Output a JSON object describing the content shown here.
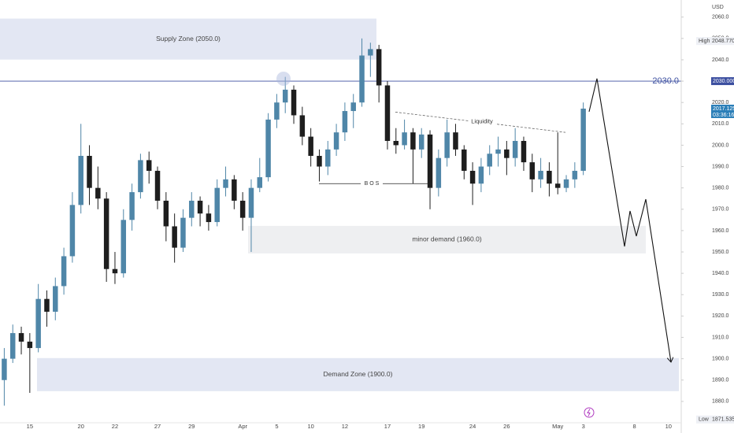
{
  "chart_data": {
    "type": "candlestick",
    "currency": "USD",
    "categories": [
      null,
      null,
      null,
      "15",
      null,
      null,
      null,
      null,
      null,
      "20",
      null,
      null,
      null,
      "22",
      null,
      null,
      null,
      null,
      "27",
      null,
      null,
      null,
      "29",
      null,
      null,
      null,
      null,
      null,
      "Apr",
      null,
      null,
      null,
      "5",
      null,
      null,
      null,
      "10",
      null,
      null,
      null,
      "12",
      null,
      null,
      null,
      null,
      "17",
      null,
      null,
      null,
      "19",
      null,
      null,
      null,
      null,
      null,
      "24",
      null,
      null,
      null,
      "26",
      null,
      null,
      null,
      null,
      null,
      "May",
      null,
      null,
      "3",
      null,
      null,
      null,
      null,
      null,
      "8",
      null,
      null,
      null,
      "10",
      null
    ],
    "open": [
      1890,
      1900,
      1912,
      1908,
      1905,
      1928,
      1922,
      1934,
      1948,
      1972,
      1995,
      1980,
      1975,
      1942,
      1940,
      1965,
      1978,
      1993,
      1988,
      1974,
      1962,
      1952,
      1966,
      1974,
      1968,
      1964,
      1980,
      1984,
      1974,
      1966,
      1980,
      1985,
      2012,
      2020,
      2026,
      2014,
      2004,
      1995,
      1990,
      1998,
      2006,
      2016,
      2020,
      2042,
      2045,
      2028,
      2002,
      2000,
      2006,
      1998,
      2005,
      1980,
      1994,
      2006,
      1998,
      1988,
      1982,
      1990,
      1996,
      1998,
      1994,
      2002,
      1992,
      1984,
      1988,
      1982,
      1980,
      1984,
      1988,
      null,
      null,
      null,
      null,
      null,
      null,
      null,
      null,
      null,
      null,
      null
    ],
    "high": [
      1905,
      1916,
      1915,
      1912,
      1935,
      1932,
      1938,
      1952,
      1978,
      2010,
      2000,
      1990,
      1978,
      1950,
      1970,
      1982,
      1996,
      1997,
      1990,
      1978,
      1968,
      1970,
      1978,
      1976,
      1972,
      1984,
      1990,
      1986,
      1978,
      1984,
      1994,
      2015,
      2024,
      2032,
      2028,
      2018,
      2008,
      1998,
      2002,
      2010,
      2020,
      2024,
      2050,
      2048,
      2047,
      2030,
      2008,
      2012,
      2008,
      2008,
      2007,
      1998,
      2012,
      2010,
      2000,
      1992,
      1994,
      2000,
      2004,
      2002,
      2008,
      2004,
      1996,
      1994,
      1992,
      2006,
      1986,
      1992,
      2020,
      null,
      null,
      null,
      null,
      null,
      null,
      null,
      null,
      null,
      null,
      null
    ],
    "low": [
      1878,
      1898,
      1902,
      1884,
      1903,
      1915,
      1918,
      1930,
      1945,
      1968,
      1972,
      1970,
      1936,
      1935,
      1938,
      1960,
      1975,
      1982,
      1970,
      1955,
      1945,
      1950,
      1962,
      1962,
      1960,
      1962,
      1976,
      1970,
      1960,
      1950,
      1978,
      1983,
      2008,
      2015,
      2010,
      2000,
      1990,
      1983,
      1986,
      1995,
      2002,
      2008,
      2018,
      2032,
      2020,
      1998,
      1996,
      1998,
      1982,
      1994,
      1970,
      1976,
      1990,
      1995,
      1984,
      1972,
      1978,
      1986,
      1990,
      1986,
      1990,
      1988,
      1978,
      1980,
      1976,
      1977,
      1978,
      1980,
      1986,
      null,
      null,
      null,
      null,
      null,
      null,
      null,
      null,
      null,
      null,
      null
    ],
    "close": [
      1900,
      1912,
      1908,
      1905,
      1928,
      1922,
      1934,
      1948,
      1972,
      1995,
      1980,
      1975,
      1942,
      1940,
      1965,
      1978,
      1993,
      1988,
      1974,
      1962,
      1952,
      1966,
      1974,
      1968,
      1964,
      1980,
      1984,
      1974,
      1966,
      1980,
      1985,
      2012,
      2020,
      2026,
      2014,
      2004,
      1995,
      1990,
      1998,
      2006,
      2016,
      2020,
      2042,
      2045,
      2028,
      2002,
      2000,
      2006,
      1998,
      2005,
      1980,
      1994,
      2006,
      1998,
      1988,
      1982,
      1990,
      1996,
      1998,
      1994,
      2002,
      1992,
      1984,
      1988,
      1982,
      1980,
      1984,
      1988,
      2017.125,
      null,
      null,
      null,
      null,
      null,
      null,
      null,
      null,
      null,
      null,
      null
    ],
    "up_color": "#4f86a8",
    "down_color": "#1e1e1e",
    "ylim": [
      1870,
      2068
    ],
    "yticks": [
      {
        "value": 1880,
        "label": "1880.0"
      },
      {
        "value": 1890,
        "label": "1890.0"
      },
      {
        "value": 1900,
        "label": "1900.0"
      },
      {
        "value": 1910,
        "label": "1910.0"
      },
      {
        "value": 1920,
        "label": "1920.0"
      },
      {
        "value": 1930,
        "label": "1930.0"
      },
      {
        "value": 1940,
        "label": "1940.0"
      },
      {
        "value": 1950,
        "label": "1950.0"
      },
      {
        "value": 1960,
        "label": "1960.0"
      },
      {
        "value": 1970,
        "label": "1970.0"
      },
      {
        "value": 1980,
        "label": "1980.0"
      },
      {
        "value": 1990,
        "label": "1990.0"
      },
      {
        "value": 2000,
        "label": "2000.0"
      },
      {
        "value": 2010,
        "label": "2010.0"
      },
      {
        "value": 2020,
        "label": "2020.0"
      },
      {
        "value": 2030,
        "label": "2030.0"
      },
      {
        "value": 2040,
        "label": "2040.0"
      },
      {
        "value": 2050,
        "label": "2050.0"
      },
      {
        "value": 2060,
        "label": "2060.0"
      }
    ],
    "zones": [
      {
        "label": "Supply Zone (2050.0)",
        "range": [
          2040.1,
          2059.3
        ],
        "color": "#e3e7f3"
      },
      {
        "label": "minor demand (1960.0)",
        "range": [
          1949.3,
          1962.2
        ],
        "color": "#eeeff1"
      },
      {
        "label": "Demand Zone (1900.0)",
        "range": [
          1884.8,
          1900.3
        ],
        "color": "#e3e7f3"
      }
    ],
    "level": {
      "value": 2030,
      "label": "2030.0",
      "axis_label": "2030.000",
      "color": "#3c4fa0"
    },
    "high_marker": {
      "label": "High",
      "value": 2048.77,
      "value_label": "2048.770"
    },
    "low_marker": {
      "label": "Low",
      "value": 1871.535,
      "value_label": "1871.535"
    },
    "countdown": "03:36:16",
    "bos": {
      "label": "B O S",
      "value": 1982
    },
    "liquidity": {
      "label": "Liquidity",
      "values": [
        2015.5,
        2006
      ]
    },
    "projection": {
      "values": [
        2015.7,
        2031.2,
        1952.6,
        1969.2,
        1957.4,
        1974.7,
        1898.4
      ]
    }
  }
}
